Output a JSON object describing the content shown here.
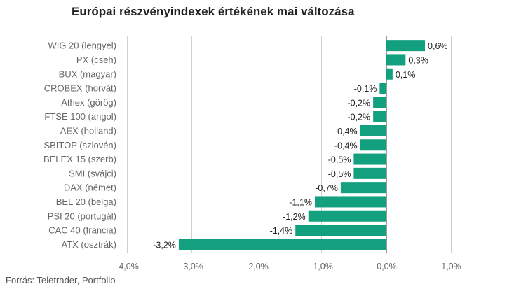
{
  "chart_data": {
    "type": "bar",
    "orientation": "horizontal",
    "title": "Európai részvényindexek értékének mai változása",
    "source": "Forrás: Teletrader, Portfolio",
    "categories": [
      "WIG 20 (lengyel)",
      "PX (cseh)",
      "BUX (magyar)",
      "CROBEX (horvát)",
      "Athex (görög)",
      "FTSE 100 (angol)",
      "AEX (holland)",
      "SBITOP (szlovén)",
      "BELEX 15 (szerb)",
      "SMI (svájci)",
      "DAX (német)",
      "BEL 20 (belga)",
      "PSI 20 (portugál)",
      "CAC 40 (francia)",
      "ATX (osztrák)"
    ],
    "values": [
      0.6,
      0.3,
      0.1,
      -0.1,
      -0.2,
      -0.2,
      -0.4,
      -0.4,
      -0.5,
      -0.5,
      -0.7,
      -1.1,
      -1.2,
      -1.4,
      -3.2
    ],
    "value_labels": [
      "0,6%",
      "0,3%",
      "0,1%",
      "-0,1%",
      "-0,2%",
      "-0,2%",
      "-0,4%",
      "-0,4%",
      "-0,5%",
      "-0,5%",
      "-0,7%",
      "-1,1%",
      "-1,2%",
      "-1,4%",
      "-3,2%"
    ],
    "xlim": [
      -4.0,
      1.0
    ],
    "xticks": [
      -4.0,
      -3.0,
      -2.0,
      -1.0,
      0.0,
      1.0
    ],
    "xtick_labels": [
      "-4,0%",
      "-3,0%",
      "-2,0%",
      "-1,0%",
      "0,0%",
      "1,0%"
    ],
    "grid": "vertical",
    "legend": "none",
    "bar_color": "#12a07e"
  }
}
